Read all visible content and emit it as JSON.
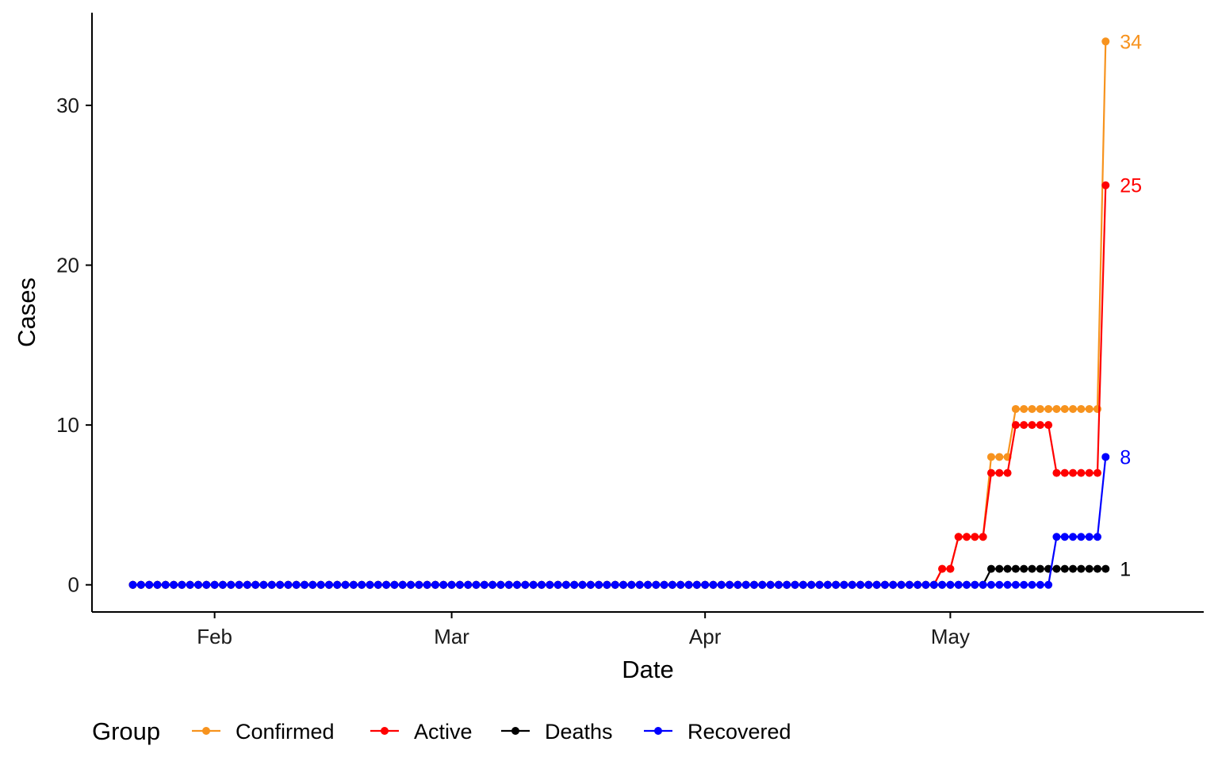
{
  "chart_data": {
    "type": "line",
    "xlabel": "Date",
    "ylabel": "Cases",
    "x_start": "2020-01-22",
    "x_end": "2020-05-20",
    "xlim": [
      "2020-01-17",
      "2020-06-01"
    ],
    "ylim": [
      -1.7,
      35.8
    ],
    "x_ticks": [
      {
        "label": "Feb",
        "date": "2020-02-01"
      },
      {
        "label": "Mar",
        "date": "2020-03-01"
      },
      {
        "label": "Apr",
        "date": "2020-04-01"
      },
      {
        "label": "May",
        "date": "2020-05-01"
      }
    ],
    "y_ticks": [
      0,
      10,
      20,
      30
    ],
    "grid": false,
    "legend": {
      "title": "Group",
      "placement": "bottom"
    },
    "series": [
      {
        "name": "Confirmed",
        "color": "#F7931E",
        "end_label": "34",
        "steps": [
          {
            "date": "2020-01-22",
            "value": 0
          },
          {
            "date": "2020-04-30",
            "value": 1
          },
          {
            "date": "2020-05-02",
            "value": 3
          },
          {
            "date": "2020-05-06",
            "value": 8
          },
          {
            "date": "2020-05-09",
            "value": 11
          },
          {
            "date": "2020-05-20",
            "value": 34
          }
        ]
      },
      {
        "name": "Active",
        "color": "#FF0000",
        "end_label": "25",
        "steps": [
          {
            "date": "2020-01-22",
            "value": 0
          },
          {
            "date": "2020-04-30",
            "value": 1
          },
          {
            "date": "2020-05-02",
            "value": 3
          },
          {
            "date": "2020-05-06",
            "value": 7
          },
          {
            "date": "2020-05-09",
            "value": 10
          },
          {
            "date": "2020-05-14",
            "value": 7
          },
          {
            "date": "2020-05-20",
            "value": 25
          }
        ]
      },
      {
        "name": "Deaths",
        "color": "#000000",
        "end_label": "1",
        "steps": [
          {
            "date": "2020-01-22",
            "value": 0
          },
          {
            "date": "2020-05-06",
            "value": 1
          }
        ]
      },
      {
        "name": "Recovered",
        "color": "#0000FF",
        "end_label": "8",
        "steps": [
          {
            "date": "2020-01-22",
            "value": 0
          },
          {
            "date": "2020-05-14",
            "value": 3
          },
          {
            "date": "2020-05-20",
            "value": 8
          }
        ]
      }
    ]
  }
}
